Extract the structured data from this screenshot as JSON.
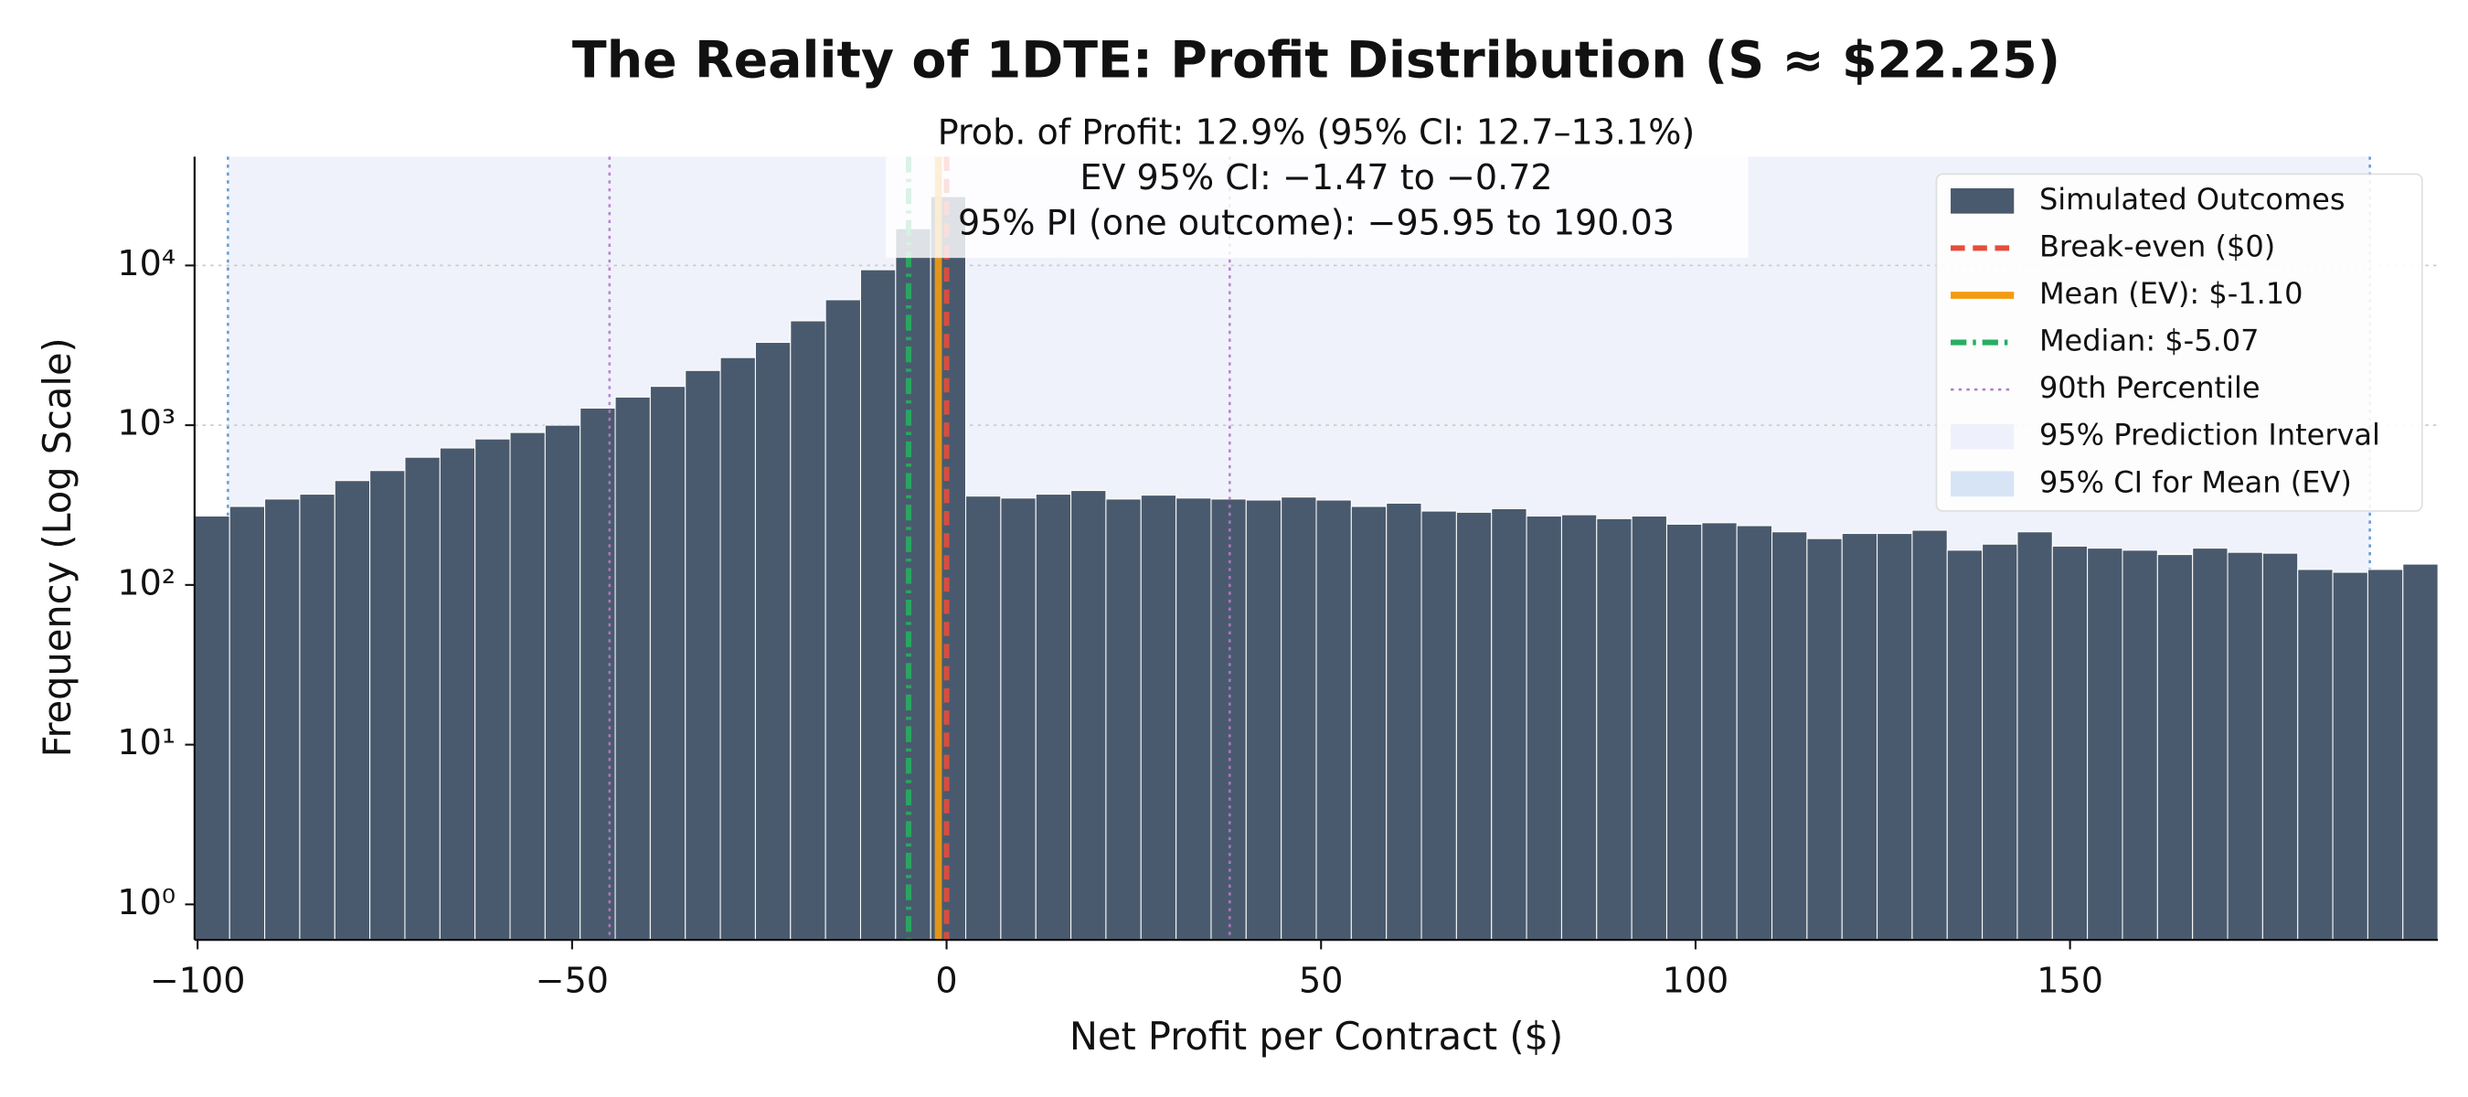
{
  "chart_data": {
    "type": "histogram",
    "title": "The Reality of 1DTE: Profit Distribution (S ≈ $22.25)",
    "xlabel": "Net Profit per Contract ($)",
    "ylabel": "Frequency (Log Scale)",
    "annotations": [
      "Prob. of Profit: 12.9% (95% CI: 12.7–13.1%)",
      "EV 95% CI: −1.47 to −0.72",
      "95% PI (one outcome): −95.95 to 190.03"
    ],
    "bins": [
      -100.4,
      -95.72,
      -91.04,
      -86.36,
      -81.68,
      -77.0,
      -72.32,
      -67.64,
      -62.96,
      -58.28,
      -53.6,
      -48.92,
      -44.24,
      -39.56,
      -34.88,
      -30.2,
      -25.52,
      -20.84,
      -16.16,
      -11.48,
      -6.8,
      -2.12,
      2.56,
      7.24,
      11.92,
      16.6,
      21.28,
      25.96,
      30.64,
      35.32,
      40.0,
      44.68,
      49.36,
      54.04,
      58.72,
      63.4,
      68.08,
      72.76,
      77.44,
      82.12,
      86.8,
      91.48,
      96.16,
      100.84,
      105.52,
      110.2,
      114.88,
      119.56,
      124.24,
      128.92,
      133.6,
      138.28,
      142.96,
      147.64,
      152.32,
      157.0,
      161.68,
      166.36,
      171.04,
      175.72,
      180.4,
      185.08,
      189.76,
      194.44,
      199.12
    ],
    "series": [
      {
        "name": "Simulated Outcomes",
        "color": "#4a5a6e",
        "values": [
          270,
          310,
          345,
          370,
          450,
          520,
          630,
          720,
          820,
          900,
          1000,
          1280,
          1500,
          1750,
          2200,
          2650,
          3300,
          4500,
          6100,
          9400,
          17000,
          27000,
          360,
          350,
          370,
          390,
          345,
          365,
          350,
          345,
          340,
          355,
          340,
          310,
          325,
          290,
          285,
          300,
          270,
          275,
          260,
          270,
          240,
          245,
          235,
          215,
          195,
          210,
          210,
          220,
          165,
          180,
          215,
          175,
          170,
          165,
          155,
          170,
          160,
          158,
          125,
          120,
          125,
          135
        ]
      }
    ],
    "spans": [
      {
        "name": "95% Prediction Interval",
        "range": [
          -95.95,
          190.03
        ],
        "color": "#eef1fb",
        "edge_color": "#6a9bd8"
      },
      {
        "name": "95% CI for Mean (EV)",
        "range": [
          -1.47,
          -0.72
        ],
        "color": "#d6e4f5"
      }
    ],
    "reference_lines": [
      {
        "name": "Break-even ($0)",
        "values": [
          0
        ],
        "color": "#e74c3c",
        "style": "dashed"
      },
      {
        "name": "Mean (EV): $-1.10",
        "values": [
          -1.1
        ],
        "color": "#f39c12",
        "style": "solid"
      },
      {
        "name": "Median: $-5.07",
        "values": [
          -5.07
        ],
        "color": "#27ae60",
        "style": "dashdot"
      },
      {
        "name": "90th Percentile",
        "values": [
          -45.0,
          37.8
        ],
        "color": "#b07cc6",
        "style": "dotted"
      }
    ],
    "xlim": [
      -100.4,
      199.12
    ],
    "xticks": [
      {
        "value": -100,
        "label": "−100"
      },
      {
        "value": -50,
        "label": "−50"
      },
      0,
      50,
      100,
      150
    ],
    "ylim": [
      0.6,
      48000
    ],
    "yticks": [
      {
        "value": 1,
        "label": "10⁰"
      },
      {
        "value": 10,
        "label": "10¹"
      },
      {
        "value": 100,
        "label": "10²"
      },
      {
        "value": 1000,
        "label": "10³"
      },
      {
        "value": 10000,
        "label": "10⁴"
      }
    ],
    "log_y": true,
    "grid": true,
    "legend": "upper right"
  }
}
